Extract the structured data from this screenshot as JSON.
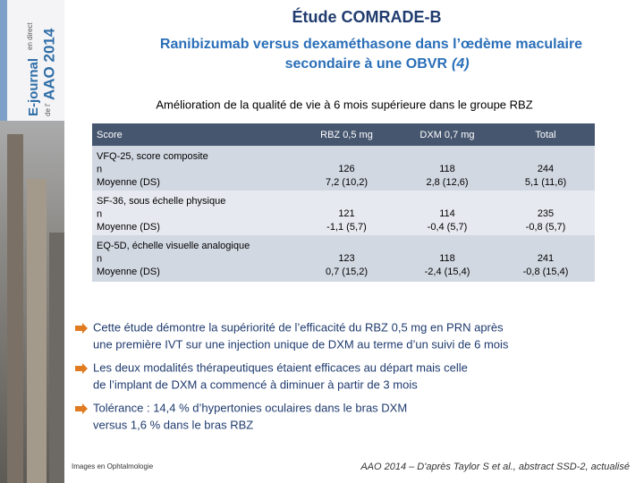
{
  "sidebar": {
    "line1": "E-journal",
    "line2": "en direct",
    "line3": "de l’",
    "line4": "AAO 2014"
  },
  "header": {
    "title": "Étude COMRADE-B",
    "subtitle_line1": "Ranibizumab versus dexaméthasone dans l’œdème maculaire",
    "subtitle_line2": "secondaire à une OBVR",
    "subtitle_ref": "(4)"
  },
  "lead": "Amélioration de la qualité de vie à 6 mois supérieure dans le groupe RBZ",
  "table": {
    "columns": [
      "Score",
      "RBZ 0,5 mg",
      "DXM 0,7 mg",
      "Total"
    ],
    "rows": [
      {
        "label": [
          "VFQ-25, score composite",
          "n",
          "Moyenne (DS)"
        ],
        "cells": [
          [
            "126",
            "7,2 (10,2)"
          ],
          [
            "118",
            "2,8 (12,6)"
          ],
          [
            "244",
            "5,1 (11,6)"
          ]
        ]
      },
      {
        "label": [
          "SF-36, sous échelle physique",
          "n",
          "Moyenne (DS)"
        ],
        "cells": [
          [
            "121",
            "-1,1 (5,7)"
          ],
          [
            "114",
            "-0,4 (5,7)"
          ],
          [
            "235",
            "-0,8 (5,7)"
          ]
        ]
      },
      {
        "label": [
          "EQ-5D, échelle visuelle analogique",
          "n",
          "Moyenne (DS)"
        ],
        "cells": [
          [
            "123",
            "0,7 (15,2)"
          ],
          [
            "118",
            "-2,4 (15,4)"
          ],
          [
            "241",
            "-0,8 (15,4)"
          ]
        ]
      }
    ]
  },
  "bullets": [
    [
      "Cette étude démontre la supériorité de l’efficacité du RBZ 0,5 mg en PRN après",
      "une première IVT sur une injection unique de DXM au terme d’un suivi de 6 mois"
    ],
    [
      "Les deux modalités thérapeutiques étaient efficaces au départ mais celle",
      "de l’implant de DXM a commencé à diminuer à partir de 3 mois"
    ],
    [
      "Tolérance : 14,4 % d’hypertonies oculaires dans le bras DXM",
      "versus 1,6 % dans le bras RBZ"
    ]
  ],
  "footer": {
    "left": "Images en Ophtalmologie",
    "right": "AAO 2014 – D'après Taylor S et al., abstract SSD-2, actualisé"
  }
}
